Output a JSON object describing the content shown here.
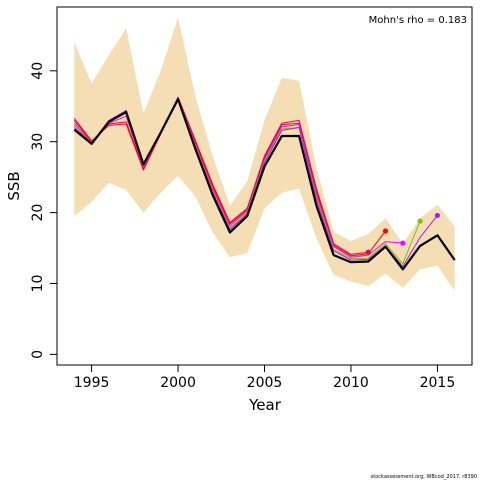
{
  "chart_data": {
    "type": "line",
    "title": "",
    "xlabel": "Year",
    "ylabel": "SSB",
    "xlim": [
      1993,
      2017
    ],
    "ylim": [
      -1.5,
      49
    ],
    "xticks": [
      1995,
      2000,
      2005,
      2010,
      2015
    ],
    "yticks": [
      0,
      10,
      20,
      30,
      40
    ],
    "grid": false,
    "annotation": "Mohn's rho = 0.183",
    "footer": "stockassessment.org, WBcod_2017, r8390",
    "confidence_band": {
      "color": "#f5deb3",
      "x": [
        1994,
        1995,
        1996,
        1997,
        1998,
        1999,
        2000,
        2001,
        2002,
        2003,
        2004,
        2005,
        2006,
        2007,
        2008,
        2009,
        2010,
        2011,
        2012,
        2013,
        2014,
        2015,
        2016
      ],
      "lower": [
        19.5,
        21.5,
        24.2,
        23.2,
        20.0,
        22.8,
        25.2,
        22.3,
        17.2,
        13.7,
        14.3,
        20.6,
        22.8,
        23.4,
        16.4,
        11.2,
        10.3,
        9.6,
        11.4,
        9.4,
        12.0,
        12.5,
        9.0
      ],
      "upper": [
        44.0,
        38.2,
        42.2,
        46.0,
        34.0,
        40.0,
        47.5,
        36.4,
        28.0,
        21.0,
        24.4,
        33.0,
        39.0,
        38.6,
        26.4,
        17.3,
        16.0,
        17.0,
        19.2,
        15.6,
        19.2,
        21.1,
        18.0
      ]
    },
    "series": [
      {
        "color": "#000000",
        "width": 2.2,
        "x": [
          1994,
          1995,
          1996,
          1997,
          1998,
          1999,
          2000,
          2001,
          2002,
          2003,
          2004,
          2005,
          2006,
          2007,
          2008,
          2009,
          2010,
          2011,
          2012,
          2013,
          2014,
          2015,
          2016
        ],
        "values": [
          31.7,
          29.7,
          32.8,
          34.2,
          26.8,
          31.3,
          36.0,
          29.0,
          22.5,
          17.2,
          19.5,
          26.5,
          30.8,
          30.8,
          21.0,
          14.0,
          13.0,
          13.1,
          15.2,
          12.0,
          15.3,
          16.8,
          13.3
        ]
      },
      {
        "color": "#a020f0",
        "width": 1,
        "marker_last": true,
        "x": [
          1994,
          1995,
          1996,
          1997,
          1998,
          1999,
          2000,
          2001,
          2002,
          2003,
          2004,
          2005,
          2006,
          2007,
          2008,
          2009,
          2010,
          2011,
          2012,
          2013,
          2014,
          2015
        ],
        "values": [
          32.0,
          29.8,
          33.0,
          34.4,
          26.7,
          31.4,
          36.2,
          29.2,
          22.8,
          17.6,
          19.8,
          27.0,
          31.6,
          32.0,
          21.8,
          14.6,
          13.3,
          13.4,
          15.3,
          12.4,
          16.5,
          19.6
        ]
      },
      {
        "color": "#7cc000",
        "width": 1,
        "marker_last": true,
        "x": [
          1994,
          1995,
          1996,
          1997,
          1998,
          1999,
          2000,
          2001,
          2002,
          2003,
          2004,
          2005,
          2006,
          2007,
          2008,
          2009,
          2010,
          2011,
          2012,
          2013,
          2014
        ],
        "values": [
          32.3,
          29.8,
          32.8,
          34.0,
          26.6,
          31.3,
          36.1,
          29.4,
          23.0,
          17.8,
          20.0,
          27.2,
          31.8,
          32.0,
          22.2,
          14.8,
          13.5,
          13.6,
          15.6,
          12.8,
          18.8
        ]
      },
      {
        "color": "#ff00ff",
        "width": 1,
        "marker_last": true,
        "x": [
          1994,
          1995,
          1996,
          1997,
          1998,
          1999,
          2000,
          2001,
          2002,
          2003,
          2004,
          2005,
          2006,
          2007,
          2008,
          2009,
          2010,
          2011,
          2012,
          2013
        ],
        "values": [
          32.6,
          29.9,
          32.6,
          33.6,
          26.4,
          31.2,
          36.2,
          29.7,
          23.3,
          18.1,
          20.2,
          27.5,
          32.1,
          32.4,
          22.6,
          15.2,
          13.7,
          14.0,
          15.9,
          15.7
        ]
      },
      {
        "color": "#ff0000",
        "width": 1,
        "marker_last": true,
        "x": [
          1994,
          1995,
          1996,
          1997,
          1998,
          1999,
          2000,
          2001,
          2002,
          2003,
          2004,
          2005,
          2006,
          2007,
          2008,
          2009,
          2010,
          2011,
          2012
        ],
        "values": [
          33.0,
          30.0,
          32.5,
          32.8,
          26.2,
          31.2,
          36.2,
          30.0,
          23.7,
          18.4,
          20.4,
          27.8,
          32.4,
          32.6,
          23.0,
          15.4,
          13.9,
          14.2,
          17.4
        ]
      },
      {
        "color": "#e0005a",
        "width": 1,
        "marker_last": true,
        "x": [
          1994,
          1995,
          1996,
          1997,
          1998,
          1999,
          2000,
          2001,
          2002,
          2003,
          2004,
          2005,
          2006,
          2007,
          2008,
          2009,
          2010,
          2011
        ],
        "values": [
          33.3,
          30.1,
          32.3,
          32.5,
          26.0,
          31.1,
          36.3,
          30.2,
          24.0,
          18.6,
          20.6,
          28.0,
          32.6,
          33.0,
          23.4,
          15.6,
          14.1,
          14.4
        ]
      }
    ]
  }
}
